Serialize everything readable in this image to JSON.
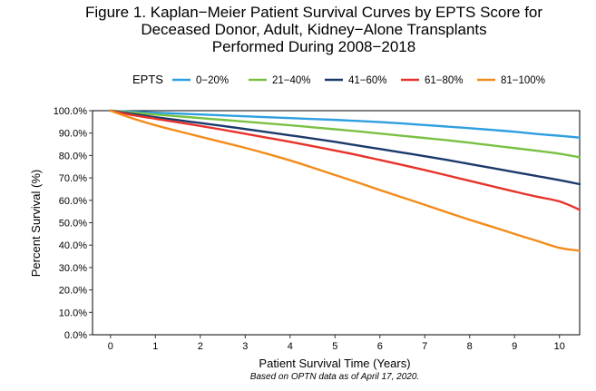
{
  "chart_data": {
    "type": "line",
    "title_lines": [
      "Figure 1. Kaplan−Meier Patient Survival Curves by EPTS Score for",
      "Deceased Donor, Adult, Kidney−Alone Transplants",
      "Performed During 2008−2018"
    ],
    "xlabel": "Patient Survival Time (Years)",
    "ylabel": "Percent Survival (%)",
    "note": "Based on OPTN data as of April 17, 2020.",
    "legend_title": "EPTS",
    "legend_position": "top",
    "xlim": [
      -0.4,
      10.45
    ],
    "ylim": [
      0,
      100
    ],
    "x_ticks": [
      0,
      1,
      2,
      3,
      4,
      5,
      6,
      7,
      8,
      9,
      10
    ],
    "x_tick_labels": [
      "0",
      "1",
      "2",
      "3",
      "4",
      "5",
      "6",
      "7",
      "8",
      "9",
      "10"
    ],
    "y_ticks": [
      0,
      10,
      20,
      30,
      40,
      50,
      60,
      70,
      80,
      90,
      100
    ],
    "y_tick_labels": [
      "0.0%",
      "10.0%",
      "20.0%",
      "30.0%",
      "40.0%",
      "50.0%",
      "60.0%",
      "70.0%",
      "80.0%",
      "90.0%",
      "100.0%"
    ],
    "grid": false,
    "x": [
      0,
      0.5,
      1,
      1.5,
      2,
      2.5,
      3,
      3.5,
      4,
      4.5,
      5,
      5.5,
      6,
      6.5,
      7,
      7.5,
      8,
      8.5,
      9,
      9.5,
      10,
      10.45
    ],
    "series": [
      {
        "name": "0−20%",
        "color": "#2E9FDF",
        "values": [
          100,
          99.5,
          99.1,
          98.7,
          98.3,
          97.9,
          97.5,
          97.1,
          96.7,
          96.3,
          95.9,
          95.4,
          94.9,
          94.3,
          93.6,
          92.9,
          92.2,
          91.4,
          90.6,
          89.6,
          88.8,
          88.0
        ]
      },
      {
        "name": "21−40%",
        "color": "#7AC143",
        "values": [
          100,
          99.1,
          98.3,
          97.5,
          96.7,
          95.9,
          95.1,
          94.3,
          93.5,
          92.6,
          91.7,
          90.8,
          89.8,
          88.8,
          87.8,
          86.8,
          85.7,
          84.5,
          83.3,
          82.1,
          80.8,
          79.2
        ]
      },
      {
        "name": "41−60%",
        "color": "#1B3A6B",
        "values": [
          100,
          98.5,
          97.1,
          95.8,
          94.5,
          93.2,
          91.8,
          90.4,
          89.0,
          87.6,
          86.1,
          84.5,
          82.9,
          81.3,
          79.7,
          78.0,
          76.2,
          74.4,
          72.6,
          70.8,
          69.0,
          67.2
        ]
      },
      {
        "name": "61−80%",
        "color": "#E8322A",
        "values": [
          100,
          98.0,
          96.4,
          94.8,
          93.2,
          91.5,
          89.7,
          87.9,
          86.1,
          84.2,
          82.2,
          80.2,
          78.0,
          75.8,
          73.5,
          71.1,
          68.7,
          66.3,
          63.9,
          61.6,
          59.5,
          55.8
        ]
      },
      {
        "name": "81−100%",
        "color": "#F28C1B",
        "values": [
          100,
          96.5,
          93.5,
          90.9,
          88.4,
          85.9,
          83.4,
          80.7,
          77.8,
          74.6,
          71.3,
          68.0,
          64.6,
          61.3,
          58.0,
          54.6,
          51.3,
          48.2,
          45.0,
          41.9,
          38.8,
          37.5
        ]
      }
    ]
  }
}
